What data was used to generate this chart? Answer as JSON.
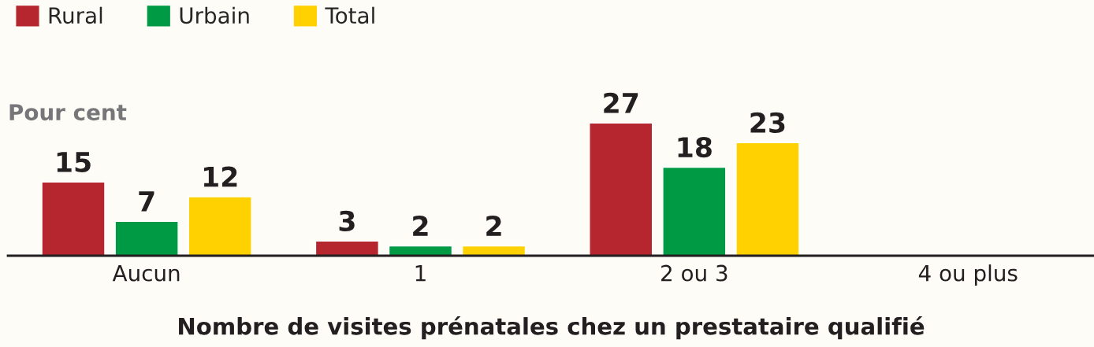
{
  "chart_data": {
    "type": "bar",
    "xlabel": "Nombre de visites prénatales chez un prestataire qualifié",
    "ylabel": "Pour cent",
    "categories": [
      "Aucun",
      "1",
      "2 ou 3",
      "4 ou plus"
    ],
    "series": [
      {
        "name": "Rural",
        "color": "#b5262e",
        "values": [
          15,
          3,
          27,
          null
        ]
      },
      {
        "name": "Urbain",
        "color": "#009a44",
        "values": [
          7,
          2,
          18,
          null
        ]
      },
      {
        "name": "Total",
        "color": "#ffd100",
        "values": [
          12,
          2,
          23,
          null
        ]
      }
    ],
    "ylim": [
      0,
      52
    ],
    "data_labels": true,
    "legend": "top left",
    "grid": false
  }
}
